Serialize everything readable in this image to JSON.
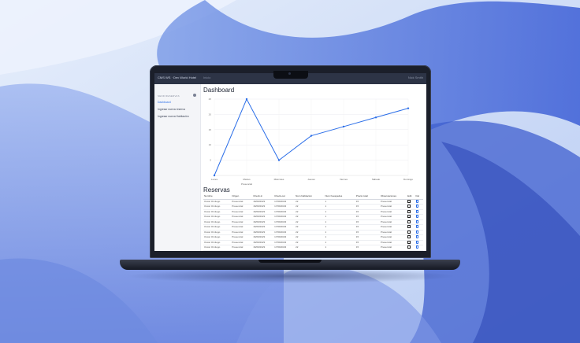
{
  "app": {
    "brand": "CMS WS · Dev World Hotel",
    "breadcrumb": "Inicio",
    "user": "Nick Smith"
  },
  "sidebar": {
    "heading": "SEND RESERVAS",
    "items": [
      {
        "label": "Dashboard",
        "active": true
      },
      {
        "label": "Ingresar nueva reserva",
        "active": false
      },
      {
        "label": "Ingresar nueva Habitación",
        "active": false
      }
    ]
  },
  "dashboard": {
    "title": "Dashboard"
  },
  "chart_data": {
    "type": "line",
    "categories": [
      "Lunes",
      "Martes",
      "Miércoles",
      "Jueves",
      "Viernes",
      "Sábado",
      "Domingo"
    ],
    "values": [
      0,
      25,
      5,
      13,
      16,
      19,
      22
    ],
    "ylim": [
      0,
      25
    ],
    "yticks": [
      5,
      10,
      15,
      20,
      25
    ],
    "xlabel": "Presencial",
    "color": "#2b6ee8",
    "grid": true
  },
  "reservas": {
    "title": "Reservas",
    "columns": [
      "Nombre",
      "Origen",
      "Check-in",
      "Check-out",
      "Num habitacion",
      "Num huespedes",
      "Precio total",
      "Observaciones",
      "Edit",
      "Del"
    ],
    "rows": [
      [
        "Oscar Ornitogo",
        "Presencial",
        "16/09/2023",
        "17/09/2023",
        "22",
        "1",
        "15",
        "Presencial"
      ],
      [
        "Oscar Ornitogo",
        "Presencial",
        "16/09/2023",
        "17/09/2023",
        "22",
        "1",
        "15",
        "Presencial"
      ],
      [
        "Oscar Ornitogo",
        "Presencial",
        "16/09/2023",
        "17/09/2023",
        "22",
        "1",
        "15",
        "Presencial"
      ],
      [
        "Oscar Ornitogo",
        "Presencial",
        "16/09/2023",
        "17/09/2023",
        "22",
        "1",
        "15",
        "Presencial"
      ],
      [
        "Oscar Ornitogo",
        "Presencial",
        "16/09/2023",
        "17/09/2023",
        "22",
        "1",
        "15",
        "Presencial"
      ],
      [
        "Oscar Ornitogo",
        "Presencial",
        "16/09/2023",
        "17/09/2023",
        "22",
        "1",
        "15",
        "Presencial"
      ],
      [
        "Oscar Ornitogo",
        "Presencial",
        "16/09/2023",
        "17/09/2023",
        "22",
        "1",
        "15",
        "Presencial"
      ],
      [
        "Oscar Ornitogo",
        "Presencial",
        "16/09/2023",
        "17/09/2023",
        "22",
        "1",
        "15",
        "Presencial"
      ],
      [
        "Oscar Ornitogo",
        "Presencial",
        "16/09/2023",
        "17/09/2023",
        "22",
        "1",
        "15",
        "Presencial"
      ],
      [
        "Oscar Ornitogo",
        "Presencial",
        "16/09/2023",
        "17/09/2023",
        "22",
        "1",
        "15",
        "Presencial"
      ],
      [
        "Oscar Ornitogo",
        "Presencial",
        "16/09/2023",
        "17/09/2023",
        "22",
        "1",
        "15",
        "Presencial"
      ],
      [
        "Oscar Ornitogo",
        "Presencial",
        "16/09/2023",
        "17/09/2023",
        "22",
        "1",
        "15",
        "Presencial"
      ]
    ]
  }
}
